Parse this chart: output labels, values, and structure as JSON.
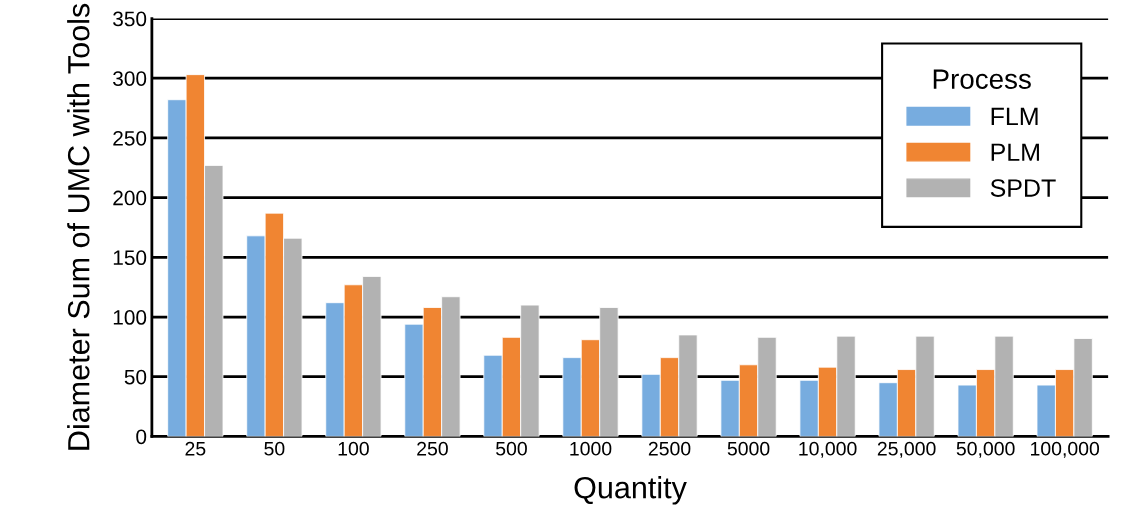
{
  "chart_data": {
    "type": "bar",
    "xlabel": "Quantity",
    "ylabel": "Diameter Sum of UMC with Tools",
    "legend_title": "Process",
    "categories": [
      "25",
      "50",
      "100",
      "250",
      "500",
      "1000",
      "2500",
      "5000",
      "10,000",
      "25,000",
      "50,000",
      "100,000"
    ],
    "series": [
      {
        "name": "FLM",
        "color": "#77acdf",
        "values": [
          282,
          168,
          112,
          94,
          68,
          66,
          52,
          47,
          47,
          45,
          43,
          43
        ]
      },
      {
        "name": "PLM",
        "color": "#f08532",
        "values": [
          303,
          187,
          127,
          108,
          83,
          81,
          66,
          60,
          58,
          56,
          56,
          56
        ]
      },
      {
        "name": "SPDT",
        "color": "#b2b2b2",
        "values": [
          227,
          166,
          134,
          117,
          110,
          108,
          85,
          83,
          84,
          84,
          84,
          82
        ]
      }
    ],
    "ylim": [
      0,
      350
    ],
    "yticks": [
      0,
      50,
      100,
      150,
      200,
      250,
      300,
      350
    ],
    "grid": "y",
    "legend": "top right"
  }
}
